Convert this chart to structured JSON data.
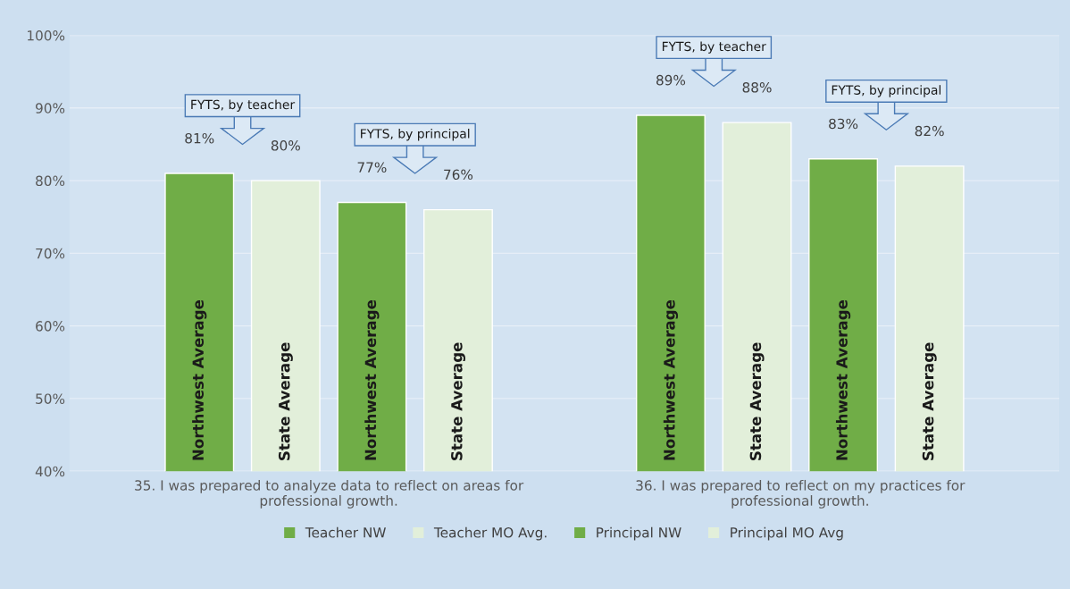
{
  "chart_data": {
    "type": "bar",
    "categories": [
      "35. I was prepared to analyze data to reflect on areas for professional growth.",
      "36. I was prepared to reflect on my practices for professional growth."
    ],
    "series": [
      {
        "name": "Teacher NW",
        "color": "#70ad47",
        "values": [
          81,
          89
        ]
      },
      {
        "name": "Teacher MO Avg.",
        "color": "#e2efda",
        "values": [
          80,
          88
        ]
      },
      {
        "name": "Principal NW",
        "color": "#70ad47",
        "values": [
          77,
          83
        ]
      },
      {
        "name": "Principal MO Avg",
        "color": "#e2efda",
        "values": [
          76,
          82
        ]
      }
    ],
    "ylim": [
      40,
      100
    ],
    "yticks": [
      {
        "value": 40,
        "label": "40%"
      },
      {
        "value": 50,
        "label": "50%"
      },
      {
        "value": 60,
        "label": "60%"
      },
      {
        "value": 70,
        "label": "70%"
      },
      {
        "value": 80,
        "label": "80%"
      },
      {
        "value": 90,
        "label": "90%"
      },
      {
        "value": 100,
        "label": "100%"
      }
    ],
    "value_labels": [
      "81%",
      "89%",
      "80%",
      "88%",
      "77%",
      "83%",
      "76%",
      "82%"
    ],
    "grid": "y",
    "legend": "bottom",
    "annotations": [
      "FYTS, by teacher",
      "FYTS, by principal",
      "FYTS, by teacher",
      "FYTS, by principal",
      "Northwest Average",
      "State Average",
      "Northwest Average",
      "State Average",
      "Northwest Average",
      "State Average",
      "Northwest Average",
      "State Average"
    ]
  }
}
